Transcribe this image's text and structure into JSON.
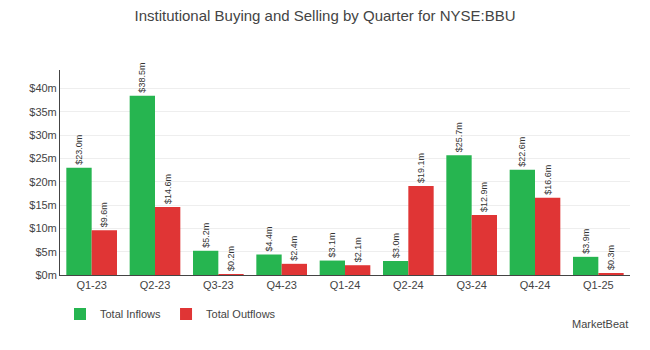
{
  "chart_data": {
    "type": "bar",
    "title": "Institutional Buying and Selling by Quarter for NYSE:BBU",
    "categories": [
      "Q1-23",
      "Q2-23",
      "Q3-23",
      "Q4-23",
      "Q1-24",
      "Q2-24",
      "Q3-24",
      "Q4-24",
      "Q1-25"
    ],
    "series": [
      {
        "name": "Total Inflows",
        "color": "#26b550",
        "values": [
          23.0,
          38.5,
          5.2,
          4.4,
          3.1,
          3.0,
          25.7,
          22.6,
          3.9
        ],
        "value_labels": [
          "$23.0m",
          "$38.5m",
          "$5.2m",
          "$4.4m",
          "$3.1m",
          "$3.0m",
          "$25.7m",
          "$22.6m",
          "$3.9m"
        ]
      },
      {
        "name": "Total Outflows",
        "color": "#e03535",
        "values": [
          9.6,
          14.6,
          0.2,
          2.4,
          2.1,
          19.1,
          12.9,
          16.6,
          0.3
        ],
        "value_labels": [
          "$9.6m",
          "$14.6m",
          "$0.2m",
          "$2.4m",
          "$2.1m",
          "$19.1m",
          "$12.9m",
          "$16.6m",
          "$0.3m"
        ]
      }
    ],
    "ylim": [
      0,
      44
    ],
    "yticks": [
      {
        "value": 0,
        "label": "$0m"
      },
      {
        "value": 5,
        "label": "$5m"
      },
      {
        "value": 10,
        "label": "$10m"
      },
      {
        "value": 15,
        "label": "$15m"
      },
      {
        "value": 20,
        "label": "$20m"
      },
      {
        "value": 25,
        "label": "$25m"
      },
      {
        "value": 30,
        "label": "$30m"
      },
      {
        "value": 35,
        "label": "$35m"
      },
      {
        "value": 40,
        "label": "$40m"
      }
    ],
    "grid": true,
    "legend": "lower left",
    "data_labels": true,
    "annotations": [
      "MarketBeat"
    ]
  }
}
